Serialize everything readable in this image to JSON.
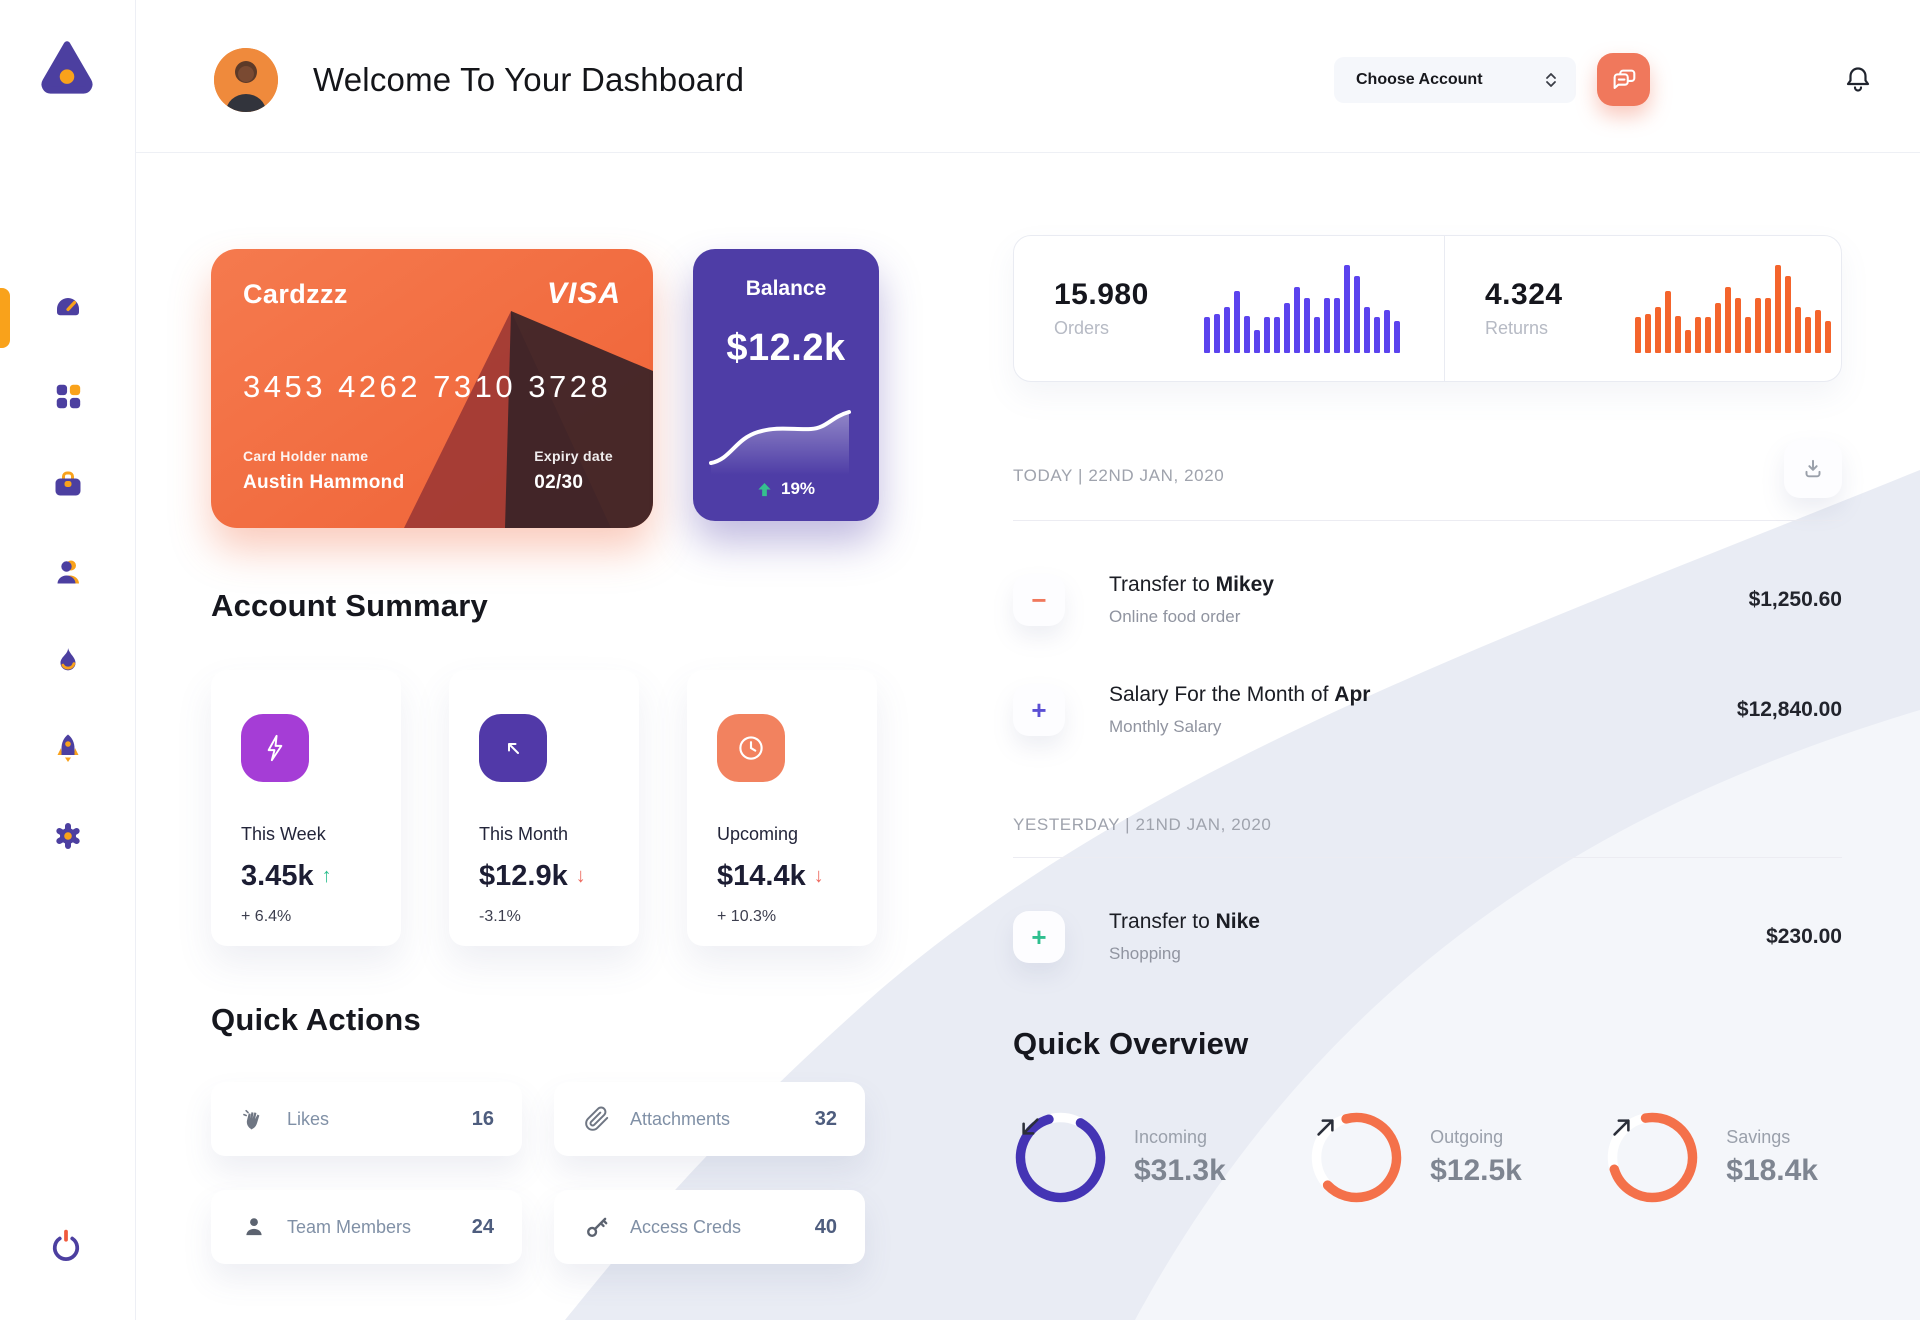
{
  "colors": {
    "accent_orange": "#f9a21b",
    "salmon": "#f0785c",
    "purple": "#4c3fa0",
    "bar_purple": "#5b43ee",
    "bar_orange": "#f4642c",
    "green": "#2fbf8f",
    "red": "#ee6a5f"
  },
  "sidebar": {
    "icons": [
      "dashboard-gauge",
      "apps-grid",
      "briefcase",
      "team",
      "flame",
      "rocket",
      "settings-gear",
      "power"
    ]
  },
  "header": {
    "title": "Welcome To Your Dashboard",
    "account_selector": "Choose Account"
  },
  "card": {
    "name": "Cardzzz",
    "brand": "VISA",
    "number": "3453 4262 7310 3728",
    "holder_label": "Card Holder name",
    "holder": "Austin Hammond",
    "expiry_label": "Expiry date",
    "expiry": "02/30"
  },
  "balance": {
    "label": "Balance",
    "value": "$12.2k",
    "change": "19%"
  },
  "stats": {
    "orders": {
      "value": "15.980",
      "label": "Orders",
      "color": "#5b43ee"
    },
    "returns": {
      "value": "4.324",
      "label": "Returns",
      "color": "#f4642c"
    }
  },
  "chart_data": [
    {
      "type": "bar",
      "name": "orders-sparkline",
      "values": [
        40,
        44,
        52,
        70,
        42,
        26,
        40,
        40,
        56,
        74,
        62,
        40,
        62,
        62,
        100,
        87,
        52,
        40,
        48,
        36
      ]
    },
    {
      "type": "bar",
      "name": "returns-sparkline",
      "values": [
        40,
        44,
        52,
        70,
        42,
        26,
        40,
        40,
        56,
        74,
        62,
        40,
        62,
        62,
        100,
        87,
        52,
        40,
        48,
        36
      ]
    },
    {
      "type": "line",
      "name": "balance-trend",
      "values": [
        10,
        14,
        30,
        46,
        52,
        54,
        54,
        55,
        70,
        78
      ]
    }
  ],
  "account_summary": {
    "heading": "Account Summary",
    "cards": [
      {
        "label": "This Week",
        "value": "3.45k",
        "arrow": "↑",
        "arrow_color": "#2fbf8f",
        "percent": "+ 6.4%",
        "tile_color": "#a53dd6",
        "icon": "lightning-icon"
      },
      {
        "label": "This Month",
        "value": "$12.9k",
        "arrow": "↓",
        "arrow_color": "#ee6a5f",
        "percent": "-3.1%",
        "tile_color": "#5139a8",
        "icon": "trend-up-left-icon"
      },
      {
        "label": "Upcoming",
        "value": "$14.4k",
        "arrow": "↓",
        "arrow_color": "#ee6a5f",
        "percent": "+ 10.3%",
        "tile_color": "#f2825f",
        "icon": "clock-icon"
      }
    ]
  },
  "quick_actions": {
    "heading": "Quick Actions",
    "items": [
      {
        "label": "Likes",
        "count": "16",
        "icon": "clap-icon"
      },
      {
        "label": "Attachments",
        "count": "32",
        "icon": "paperclip-icon"
      },
      {
        "label": "Team Members",
        "count": "24",
        "icon": "member-icon"
      },
      {
        "label": "Access Creds",
        "count": "40",
        "icon": "key-icon"
      }
    ]
  },
  "transactions": {
    "groups": [
      {
        "date": "TODAY | 22ND JAN, 2020",
        "items": [
          {
            "title_prefix": "Transfer to ",
            "title_bold": "Mikey",
            "subtitle": "Online food order",
            "amount": "$1,250.60",
            "sign": "−",
            "sign_color": "#f0785c"
          },
          {
            "title_prefix": "Salary For the Month of ",
            "title_bold": "Apr",
            "subtitle": "Monthly Salary",
            "amount": "$12,840.00",
            "sign": "+",
            "sign_color": "#5b4fd4"
          }
        ]
      },
      {
        "date": "YESTERDAY | 21ND JAN, 2020",
        "items": [
          {
            "title_prefix": "Transfer to ",
            "title_bold": "Nike",
            "subtitle": "Shopping",
            "amount": "$230.00",
            "sign": "+",
            "sign_color": "#2fbf8f"
          }
        ]
      }
    ]
  },
  "quick_overview": {
    "heading": "Quick Overview",
    "items": [
      {
        "label": "Incoming",
        "value": "$31.3k",
        "ring_color": "#4434b4",
        "progress": 0.87,
        "start_angle": -60,
        "arrow": "down-left"
      },
      {
        "label": "Outgoing",
        "value": "$12.5k",
        "ring_color": "#f4714a",
        "progress": 0.67,
        "start_angle": -105,
        "arrow": "up-right"
      },
      {
        "label": "Savings",
        "value": "$18.4k",
        "ring_color": "#f4714a",
        "progress": 0.73,
        "start_angle": -100,
        "arrow": "up-right"
      }
    ]
  }
}
